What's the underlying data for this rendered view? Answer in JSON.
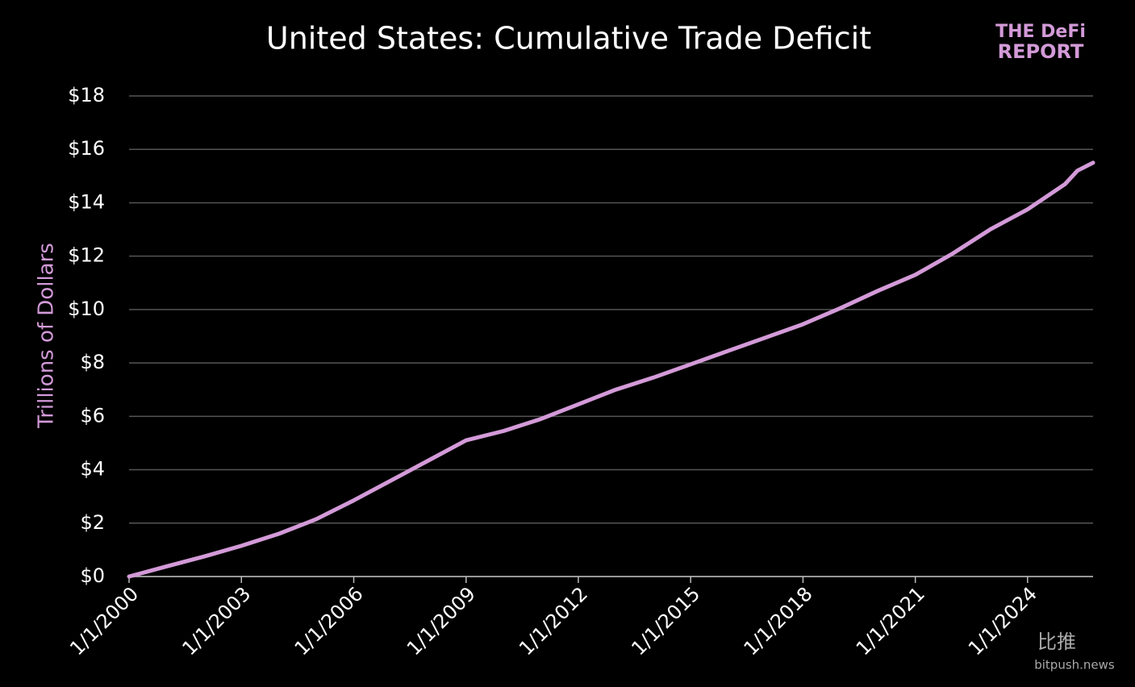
{
  "chart_data": {
    "type": "line",
    "title": "United States: Cumulative Trade Deficit",
    "y_label": "Trillions of Dollars",
    "logo": [
      "THE DeFi",
      "REPORT"
    ],
    "watermark": [
      "比推",
      "bitpush.news"
    ],
    "x": [
      "1/1/2000",
      "1/1/2001",
      "1/1/2002",
      "1/1/2003",
      "1/1/2004",
      "1/1/2005",
      "1/1/2006",
      "1/1/2007",
      "1/1/2008",
      "1/1/2009",
      "1/1/2010",
      "1/1/2011",
      "1/1/2012",
      "1/1/2013",
      "1/1/2014",
      "1/1/2015",
      "1/1/2016",
      "1/1/2017",
      "1/1/2018",
      "1/1/2019",
      "1/1/2020",
      "1/1/2021",
      "1/1/2022",
      "1/1/2023",
      "1/1/2024",
      "1/1/2025",
      "5/1/2025",
      "10/1/2025"
    ],
    "series": [
      {
        "name": "Cumulative Trade Deficit",
        "color": "#d39ad8",
        "values": [
          0,
          0.38,
          0.75,
          1.15,
          1.6,
          2.15,
          2.85,
          3.6,
          4.35,
          5.1,
          5.45,
          5.9,
          6.45,
          7.0,
          7.45,
          7.95,
          8.45,
          8.95,
          9.45,
          10.05,
          10.7,
          11.3,
          12.1,
          13.0,
          13.75,
          14.7,
          15.2,
          15.5
        ]
      }
    ],
    "xlim": [
      "1/1/2000",
      "10/1/2025"
    ],
    "xticks": [
      "1/1/2000",
      "1/1/2003",
      "1/1/2006",
      "1/1/2009",
      "1/1/2012",
      "1/1/2015",
      "1/1/2018",
      "1/1/2021",
      "1/1/2024"
    ],
    "ylim": [
      0,
      18
    ],
    "yticks": [
      {
        "value": 0,
        "label": "$0"
      },
      {
        "value": 2,
        "label": "$2"
      },
      {
        "value": 4,
        "label": "$4"
      },
      {
        "value": 6,
        "label": "$6"
      },
      {
        "value": 8,
        "label": "$8"
      },
      {
        "value": 10,
        "label": "$10"
      },
      {
        "value": 12,
        "label": "$12"
      },
      {
        "value": 14,
        "label": "$14"
      },
      {
        "value": 16,
        "label": "$16"
      },
      {
        "value": 18,
        "label": "$18"
      }
    ],
    "grid": true
  }
}
